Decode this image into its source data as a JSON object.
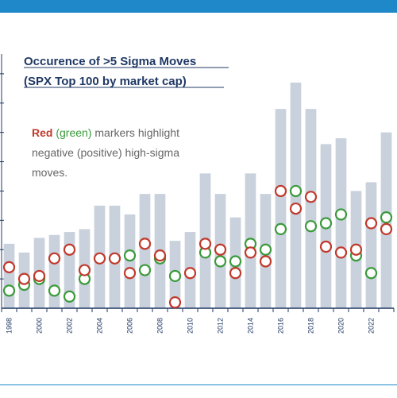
{
  "chart_data": {
    "type": "bar",
    "title_lines": [
      "Occurence of >5 Sigma Moves",
      "(SPX Top 100 by market cap)"
    ],
    "annotation": {
      "line1": {
        "red_word": "Red",
        "green_word": "(green)",
        "rest": " markers highlight"
      },
      "line2": "negative (positive) high-sigma",
      "line3": "moves."
    },
    "ylim": [
      0,
      9
    ],
    "x_tick_labels": [
      "1998",
      "2000",
      "2002",
      "2004",
      "2006",
      "2008",
      "2010",
      "2012",
      "2014",
      "2016",
      "2018",
      "2020",
      "2022"
    ],
    "categories": [
      "1998",
      "1999",
      "2000",
      "2001",
      "2002",
      "2003",
      "2004",
      "2005",
      "2006",
      "2007",
      "2008",
      "2009",
      "2010",
      "2011",
      "2012",
      "2013",
      "2014",
      "2015",
      "2016",
      "2017",
      "2018",
      "2019",
      "2020",
      "2021",
      "2022",
      "2023"
    ],
    "series": [
      {
        "type": "bar",
        "values": [
          2.2,
          1.9,
          2.4,
          2.5,
          2.6,
          2.7,
          3.5,
          3.5,
          3.2,
          3.9,
          3.9,
          2.3,
          2.6,
          4.6,
          3.9,
          3.1,
          4.6,
          3.9,
          6.8,
          7.7,
          6.8,
          5.6,
          5.8,
          4.0,
          4.3,
          6.0
        ]
      },
      {
        "type": "scatter",
        "marker_color": "#c0392b",
        "values": [
          1.4,
          1.0,
          1.1,
          1.7,
          2.0,
          1.3,
          1.7,
          1.7,
          1.2,
          2.2,
          1.8,
          0.2,
          1.2,
          2.2,
          2.0,
          1.2,
          1.9,
          1.6,
          4.0,
          3.4,
          3.8,
          2.1,
          1.9,
          2.0,
          2.9,
          2.7
        ]
      },
      {
        "type": "scatter",
        "marker_color": "#3a9a3a",
        "values": [
          0.6,
          0.8,
          1.0,
          0.6,
          0.4,
          1.0,
          null,
          null,
          1.8,
          1.3,
          1.7,
          1.1,
          null,
          1.9,
          1.6,
          1.6,
          2.2,
          2.0,
          2.7,
          4.0,
          2.8,
          2.9,
          3.2,
          1.8,
          1.2,
          3.1
        ]
      }
    ],
    "colors": {
      "bar": "#c9d1dc",
      "negative_marker": "#c0392b",
      "positive_marker": "#3a9a3a",
      "axis": "#1f3864",
      "banner": "#1e88c8"
    },
    "grid": false,
    "legend": "none"
  }
}
